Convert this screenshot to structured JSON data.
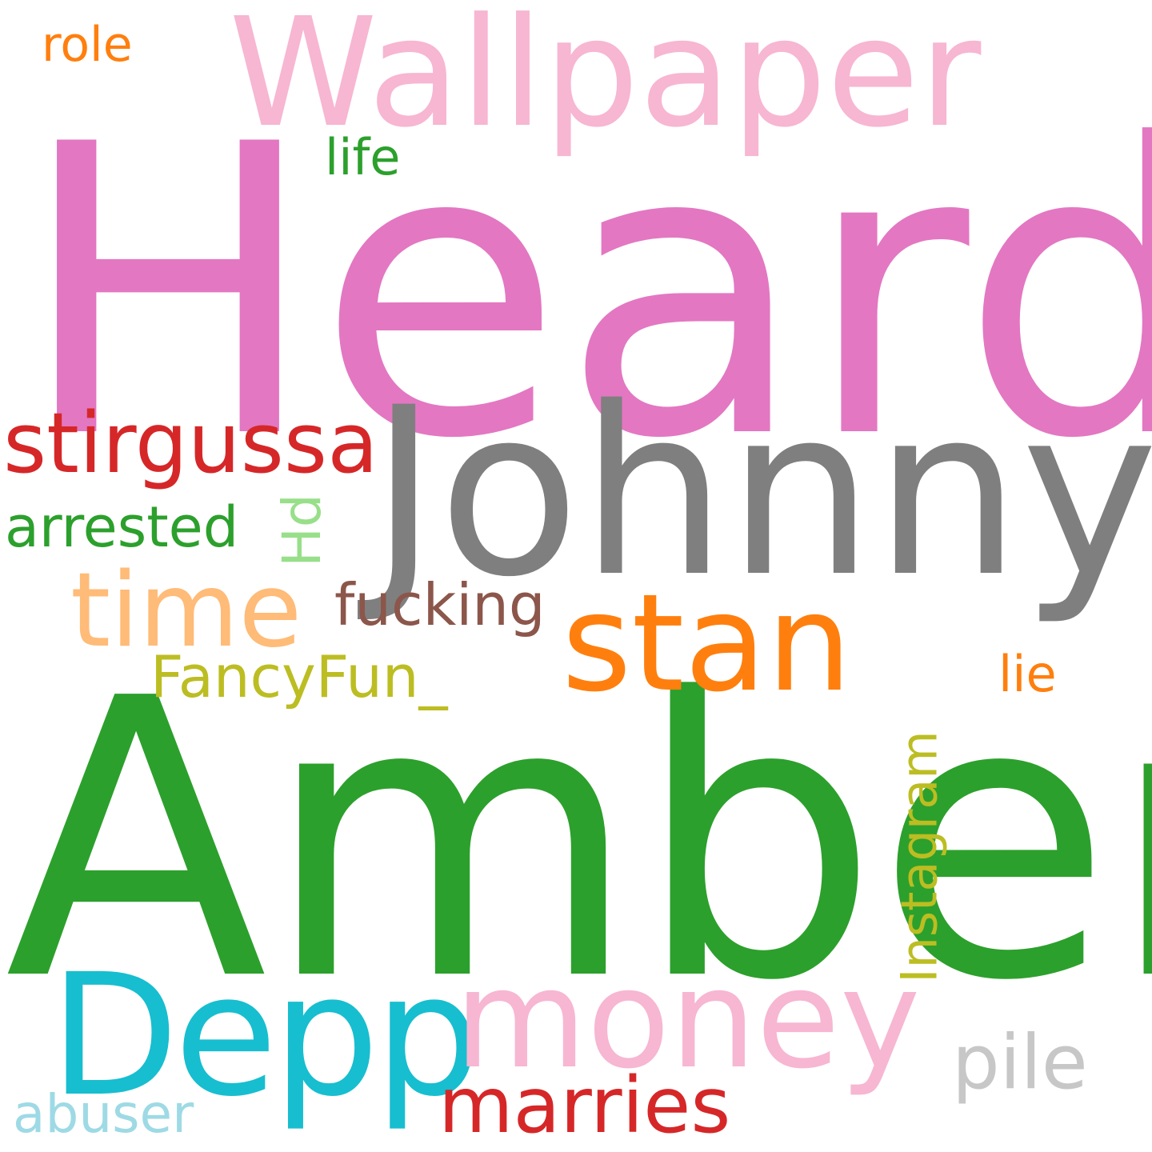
{
  "words": [
    {
      "text": "Heard",
      "color": "#e377c2"
    },
    {
      "text": "Amber",
      "color": "#2ca02c"
    },
    {
      "text": "Johnny",
      "color": "#7f7f7f"
    },
    {
      "text": "Wallpaper",
      "color": "#f7b6d2"
    },
    {
      "text": "stan",
      "color": "#ff7f0e"
    },
    {
      "text": "Depp",
      "color": "#17becf"
    },
    {
      "text": "money",
      "color": "#f7b6d2"
    },
    {
      "text": "time",
      "color": "#ffbb78"
    },
    {
      "text": "stirgussa",
      "color": "#d62728"
    },
    {
      "text": "marries",
      "color": "#d62728"
    },
    {
      "text": "pile",
      "color": "#c7c7c7"
    },
    {
      "text": "FancyFun_",
      "color": "#bcbd22"
    },
    {
      "text": "Instagram",
      "color": "#bcbd22"
    },
    {
      "text": "fucking",
      "color": "#8c564b"
    },
    {
      "text": "arrested",
      "color": "#2ca02c"
    },
    {
      "text": "abuser",
      "color": "#9edae5"
    },
    {
      "text": "Hd",
      "color": "#98df8a"
    },
    {
      "text": "life",
      "color": "#2ca02c"
    },
    {
      "text": "role",
      "color": "#ff7f0e"
    },
    {
      "text": "lie",
      "color": "#ff7f0e"
    }
  ]
}
